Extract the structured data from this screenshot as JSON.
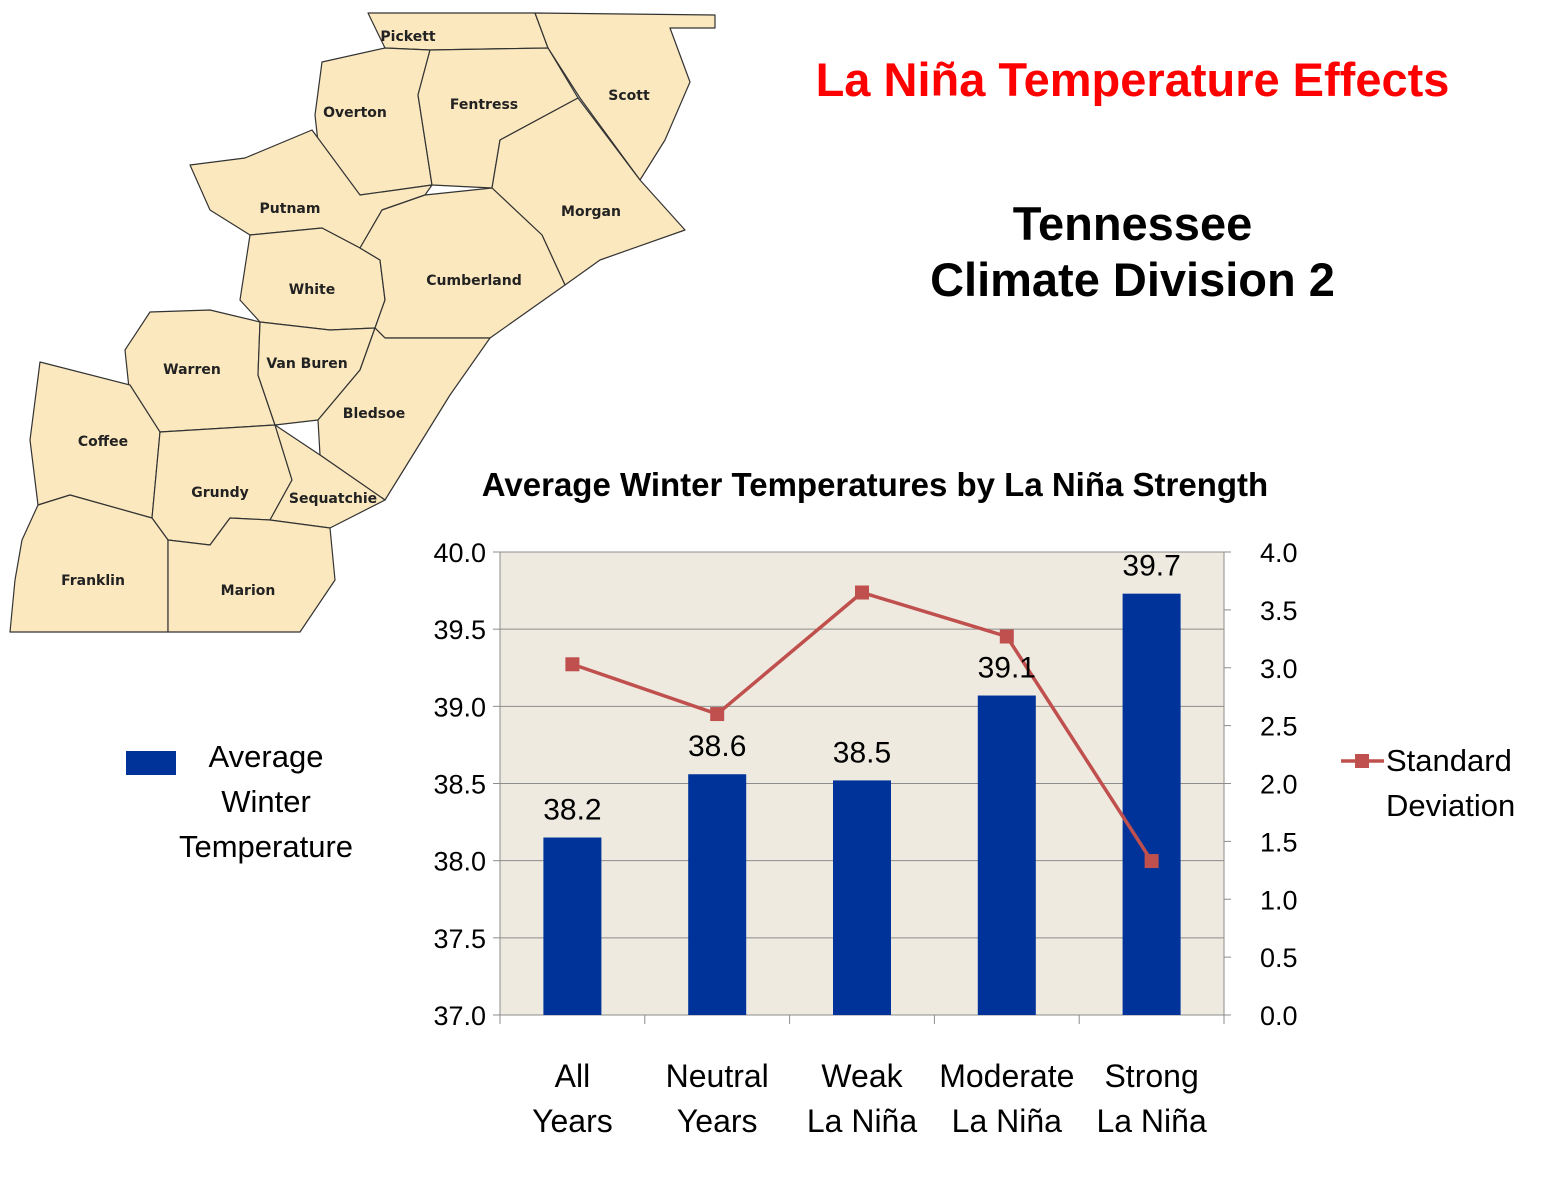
{
  "slide": {
    "title": "La Niña Temperature Effects",
    "subtitle_line1": "Tennessee",
    "subtitle_line2": "Climate Division 2",
    "title_color": "#ff0000"
  },
  "map": {
    "fill_color": "#fbe8be",
    "counties": [
      "Pickett",
      "Scott",
      "Overton",
      "Fentress",
      "Morgan",
      "Putnam",
      "White",
      "Cumberland",
      "Warren",
      "Van Buren",
      "Bledsoe",
      "Coffee",
      "Grundy",
      "Sequatchie",
      "Franklin",
      "Marion"
    ]
  },
  "chart_data": {
    "type": "bar",
    "title": "Average Winter Temperatures by La Niña Strength",
    "categories": [
      [
        "All",
        "Years"
      ],
      [
        "Neutral",
        "Years"
      ],
      [
        "Weak",
        "La Niña"
      ],
      [
        "Moderate",
        "La Niña"
      ],
      [
        "Strong",
        "La Niña"
      ]
    ],
    "series": [
      {
        "name": "Average Winter Temperature",
        "legend_lines": [
          "Average",
          "Winter",
          "Temperature"
        ],
        "type": "bar",
        "axis": "left",
        "color": "#003399",
        "values": [
          38.15,
          38.56,
          38.52,
          39.07,
          39.73
        ],
        "data_labels": [
          "38.2",
          "38.6",
          "38.5",
          "39.1",
          "39.7"
        ]
      },
      {
        "name": "Standard Deviation",
        "legend_lines": [
          "Standard",
          "Deviation"
        ],
        "type": "line",
        "axis": "right",
        "color": "#c0504d",
        "values": [
          3.03,
          2.6,
          3.65,
          3.27,
          1.33
        ]
      }
    ],
    "y_left": {
      "min": 37.0,
      "max": 40.0,
      "step": 0.5,
      "ticks": [
        "37.0",
        "37.5",
        "38.0",
        "38.5",
        "39.0",
        "39.5",
        "40.0"
      ]
    },
    "y_right": {
      "min": 0.0,
      "max": 4.0,
      "step": 0.5,
      "ticks": [
        "0.0",
        "0.5",
        "1.0",
        "1.5",
        "2.0",
        "2.5",
        "3.0",
        "3.5",
        "4.0"
      ]
    },
    "grid": true,
    "plot_background": "#eeeae0",
    "legend_placement": "left and right of plot"
  }
}
